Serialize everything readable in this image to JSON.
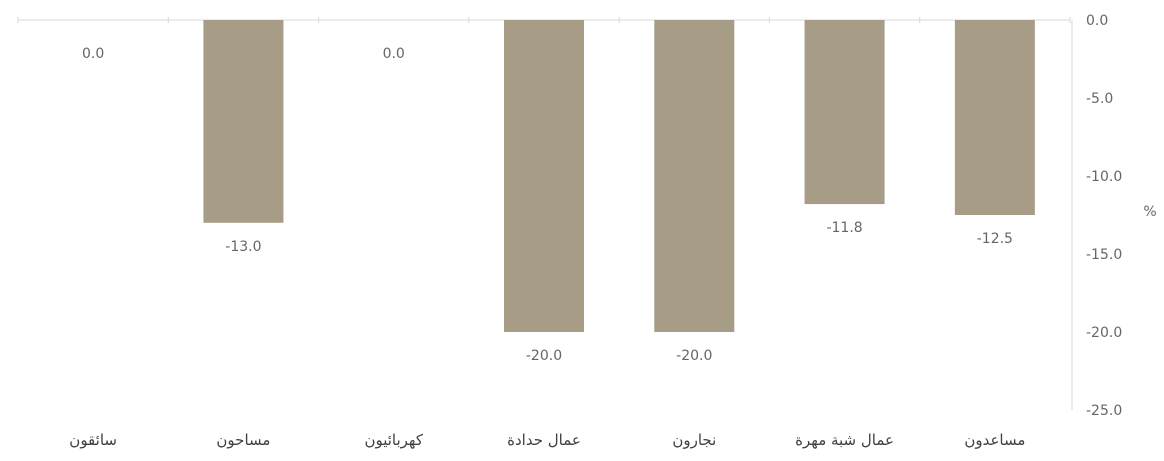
{
  "chart_data": {
    "type": "bar",
    "categories": [
      "مساعدون",
      "عمال شبة مهرة",
      "نجارون",
      "عمال حدادة",
      "كهربائيون",
      "مساحون",
      "سائقون"
    ],
    "values": [
      -12.5,
      -11.8,
      -20.0,
      -20.0,
      0.0,
      -13.0,
      0.0
    ],
    "value_labels": [
      "-12.5",
      "-11.8",
      "-20.0",
      "-20.0",
      "0.0",
      "-13.0",
      "0.0"
    ],
    "ylabel": "%",
    "ylim": [
      -25,
      0
    ],
    "y_ticks": [
      "0.0",
      "-5.0",
      "-10.0",
      "-15.0",
      "-20.0",
      "-25.0"
    ],
    "y_tick_values": [
      0,
      -5,
      -10,
      -15,
      -20,
      -25
    ],
    "axis_position": "right",
    "category_order": "right-to-left",
    "bar_color": "#a79c86",
    "text_color": "#666666",
    "axis_color": "#d9d9d9",
    "grid": false,
    "legend": "none"
  }
}
